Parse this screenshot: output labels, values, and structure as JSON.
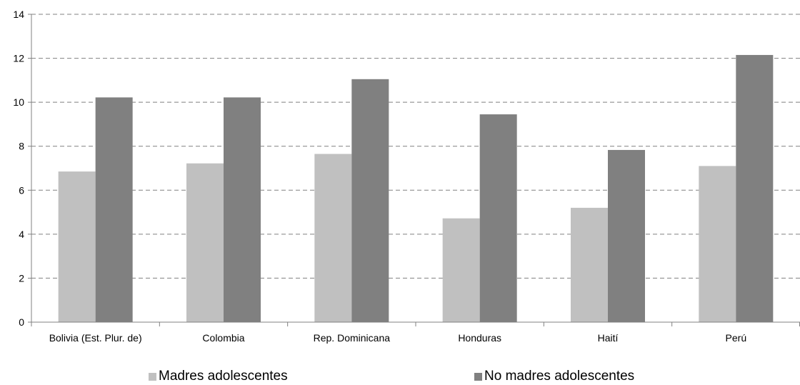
{
  "chart_data": {
    "type": "bar",
    "categories": [
      "Bolivia (Est. Plur. de)",
      "Colombia",
      "Rep. Dominicana",
      "Honduras",
      "Haití",
      "Perú"
    ],
    "series": [
      {
        "name": "Madres adolescentes",
        "values": [
          6.85,
          7.22,
          7.65,
          4.72,
          5.2,
          7.1
        ],
        "color": "#c0c0c0"
      },
      {
        "name": "No madres adolescentes",
        "values": [
          10.22,
          10.22,
          11.05,
          9.45,
          7.83,
          12.15
        ],
        "color": "#808080"
      }
    ],
    "ylim": [
      0,
      14
    ],
    "yticks": [
      0,
      2,
      4,
      6,
      8,
      10,
      12,
      14
    ],
    "grid": true,
    "legend_position": "bottom"
  }
}
